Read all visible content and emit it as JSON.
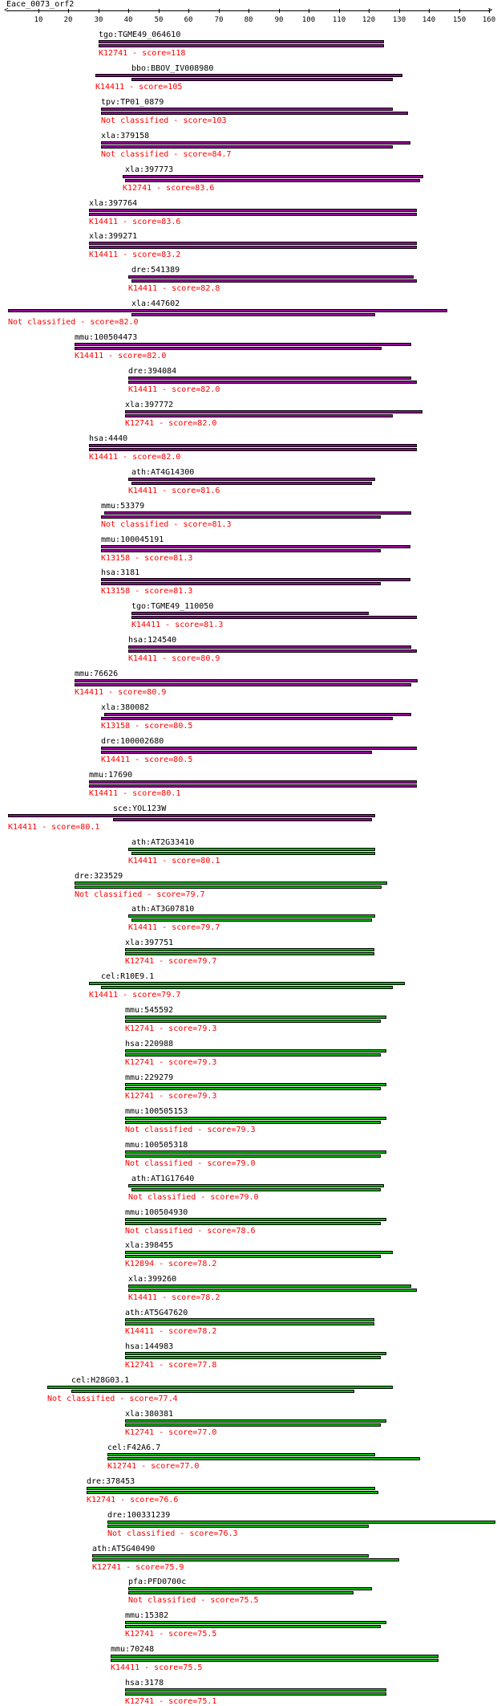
{
  "title": "Eace_0073_orf2",
  "axis": {
    "min": 0,
    "max": 160,
    "ticks": [
      10,
      20,
      30,
      40,
      50,
      60,
      70,
      80,
      90,
      100,
      110,
      120,
      130,
      140,
      150,
      160
    ]
  },
  "colors": {
    "purple": "#990099",
    "green": "#00bb00",
    "label": "#ff0000"
  },
  "hits": [
    {
      "name": "tgo:TGME49_064610",
      "cls": "K12741 - score=118",
      "color": "purple",
      "q": [
        30,
        125
      ],
      "s": [
        30,
        125
      ]
    },
    {
      "name": "bbo:BBOV_IV008980",
      "cls": "K14411 - score=105",
      "color": "purple",
      "q": [
        29,
        131
      ],
      "s": [
        41,
        128
      ]
    },
    {
      "name": "tpv:TP01_0879",
      "cls": "Not classified - score=103",
      "color": "purple",
      "q": [
        31,
        128
      ],
      "s": [
        31,
        133
      ]
    },
    {
      "name": "xla:379158",
      "cls": "Not classified - score=84.7",
      "color": "purple",
      "q": [
        31,
        134
      ],
      "s": [
        31,
        128
      ]
    },
    {
      "name": "xla:397773",
      "cls": "K12741 - score=83.6",
      "color": "purple",
      "q": [
        38,
        138
      ],
      "s": [
        39,
        137
      ]
    },
    {
      "name": "xla:397764",
      "cls": "K14411 - score=83.6",
      "color": "purple",
      "q": [
        27,
        136
      ],
      "s": [
        27,
        136
      ]
    },
    {
      "name": "xla:399271",
      "cls": "K14411 - score=83.2",
      "color": "purple",
      "q": [
        27,
        136
      ],
      "s": [
        27,
        136
      ]
    },
    {
      "name": "dre:541389",
      "cls": "K14411 - score=82.8",
      "color": "purple",
      "q": [
        40,
        135
      ],
      "s": [
        41,
        136
      ]
    },
    {
      "name": "xla:447602",
      "cls": "Not classified - score=82.0",
      "color": "purple",
      "q": [
        0,
        146
      ],
      "s": [
        41,
        122
      ]
    },
    {
      "name": "mmu:100504473",
      "cls": "K14411 - score=82.0",
      "color": "purple",
      "q": [
        22,
        134
      ],
      "s": [
        22,
        124
      ]
    },
    {
      "name": "dre:394084",
      "cls": "K14411 - score=82.0",
      "color": "purple",
      "q": [
        40,
        134
      ],
      "s": [
        40,
        136
      ]
    },
    {
      "name": "xla:397772",
      "cls": "K12741 - score=82.0",
      "color": "purple",
      "q": [
        39,
        138
      ],
      "s": [
        39,
        128
      ]
    },
    {
      "name": "hsa:4440",
      "cls": "K14411 - score=82.0",
      "color": "purple",
      "q": [
        27,
        136
      ],
      "s": [
        27,
        136
      ]
    },
    {
      "name": "ath:AT4G14300",
      "cls": "K14411 - score=81.6",
      "color": "purple",
      "q": [
        40,
        122
      ],
      "s": [
        41,
        121
      ]
    },
    {
      "name": "mmu:53379",
      "cls": "Not classified - score=81.3",
      "color": "purple",
      "q": [
        32,
        134
      ],
      "s": [
        31,
        124
      ]
    },
    {
      "name": "mmu:100045191",
      "cls": "K13158 - score=81.3",
      "color": "purple",
      "q": [
        31,
        134
      ],
      "s": [
        31,
        124
      ]
    },
    {
      "name": "hsa:3181",
      "cls": "K13158 - score=81.3",
      "color": "purple",
      "q": [
        31,
        134
      ],
      "s": [
        31,
        124
      ]
    },
    {
      "name": "tgo:TGME49_110050",
      "cls": "K14411 - score=81.3",
      "color": "purple",
      "q": [
        41,
        120
      ],
      "s": [
        41,
        136
      ]
    },
    {
      "name": "hsa:124540",
      "cls": "K14411 - score=80.9",
      "color": "purple",
      "q": [
        40,
        134
      ],
      "s": [
        40,
        136
      ]
    },
    {
      "name": "mmu:76626",
      "cls": "K14411 - score=80.9",
      "color": "purple",
      "q": [
        22,
        136
      ],
      "s": [
        22,
        134
      ]
    },
    {
      "name": "xla:380082",
      "cls": "K13158 - score=80.5",
      "color": "purple",
      "q": [
        32,
        134
      ],
      "s": [
        31,
        128
      ]
    },
    {
      "name": "dre:100002680",
      "cls": "K14411 - score=80.5",
      "color": "purple",
      "q": [
        31,
        136
      ],
      "s": [
        31,
        121
      ]
    },
    {
      "name": "mmu:17690",
      "cls": "K14411 - score=80.1",
      "color": "purple",
      "q": [
        27,
        136
      ],
      "s": [
        27,
        136
      ]
    },
    {
      "name": "sce:YOL123W",
      "cls": "K14411 - score=80.1",
      "color": "purple",
      "q": [
        0,
        122
      ],
      "s": [
        35,
        121
      ]
    },
    {
      "name": "ath:AT2G33410",
      "cls": "K14411 - score=80.1",
      "color": "green",
      "q": [
        40,
        122
      ],
      "s": [
        41,
        122
      ]
    },
    {
      "name": "dre:323529",
      "cls": "Not classified - score=79.7",
      "color": "green",
      "q": [
        22,
        126
      ],
      "s": [
        22,
        124
      ]
    },
    {
      "name": "ath:AT3G07810",
      "cls": "K14411 - score=79.7",
      "color": "green",
      "q": [
        40,
        122
      ],
      "s": [
        41,
        121
      ]
    },
    {
      "name": "xla:397751",
      "cls": "K12741 - score=79.7",
      "color": "green",
      "q": [
        39,
        122
      ],
      "s": [
        39,
        122
      ]
    },
    {
      "name": "cel:R10E9.1",
      "cls": "K14411 - score=79.7",
      "color": "green",
      "q": [
        27,
        132
      ],
      "s": [
        31,
        128
      ]
    },
    {
      "name": "mmu:545592",
      "cls": "K12741 - score=79.3",
      "color": "green",
      "q": [
        39,
        126
      ],
      "s": [
        39,
        124
      ]
    },
    {
      "name": "hsa:220988",
      "cls": "K12741 - score=79.3",
      "color": "green",
      "q": [
        39,
        126
      ],
      "s": [
        39,
        124
      ]
    },
    {
      "name": "mmu:229279",
      "cls": "K12741 - score=79.3",
      "color": "green",
      "q": [
        39,
        126
      ],
      "s": [
        39,
        124
      ]
    },
    {
      "name": "mmu:100505153",
      "cls": "Not classified - score=79.3",
      "color": "green",
      "q": [
        39,
        126
      ],
      "s": [
        39,
        124
      ]
    },
    {
      "name": "mmu:100505318",
      "cls": "Not classified - score=79.0",
      "color": "green",
      "q": [
        39,
        126
      ],
      "s": [
        39,
        124
      ]
    },
    {
      "name": "ath:AT1G17640",
      "cls": "Not classified - score=79.0",
      "color": "green",
      "q": [
        40,
        125
      ],
      "s": [
        41,
        124
      ]
    },
    {
      "name": "mmu:100504930",
      "cls": "Not classified - score=78.6",
      "color": "green",
      "q": [
        39,
        126
      ],
      "s": [
        39,
        124
      ]
    },
    {
      "name": "xla:398455",
      "cls": "K12894 - score=78.2",
      "color": "green",
      "q": [
        39,
        128
      ],
      "s": [
        39,
        124
      ]
    },
    {
      "name": "xla:399260",
      "cls": "K14411 - score=78.2",
      "color": "green",
      "q": [
        40,
        134
      ],
      "s": [
        40,
        136
      ]
    },
    {
      "name": "ath:AT5G47620",
      "cls": "K14411 - score=78.2",
      "color": "green",
      "q": [
        39,
        122
      ],
      "s": [
        39,
        122
      ]
    },
    {
      "name": "hsa:144983",
      "cls": "K12741 - score=77.8",
      "color": "green",
      "q": [
        39,
        126
      ],
      "s": [
        39,
        124
      ]
    },
    {
      "name": "cel:H28G03.1",
      "cls": "Not classified - score=77.4",
      "color": "green",
      "q": [
        13,
        128
      ],
      "s": [
        21,
        115
      ]
    },
    {
      "name": "xla:380381",
      "cls": "K12741 - score=77.0",
      "color": "green",
      "q": [
        39,
        126
      ],
      "s": [
        39,
        124
      ]
    },
    {
      "name": "cel:F42A6.7",
      "cls": "K12741 - score=77.0",
      "color": "green",
      "q": [
        33,
        122
      ],
      "s": [
        33,
        137
      ]
    },
    {
      "name": "dre:378453",
      "cls": "K12741 - score=76.6",
      "color": "green",
      "q": [
        26,
        122
      ],
      "s": [
        26,
        123
      ]
    },
    {
      "name": "dre:100331239",
      "cls": "Not classified - score=76.3",
      "color": "green",
      "q": [
        33,
        162
      ],
      "s": [
        33,
        120
      ]
    },
    {
      "name": "ath:AT5G40490",
      "cls": "K12741 - score=75.9",
      "color": "green",
      "q": [
        28,
        120
      ],
      "s": [
        28,
        130
      ]
    },
    {
      "name": "pfa:PFD0700c",
      "cls": "Not classified - score=75.5",
      "color": "green",
      "q": [
        40,
        121
      ],
      "s": [
        40,
        115
      ]
    },
    {
      "name": "mmu:15382",
      "cls": "K12741 - score=75.5",
      "color": "green",
      "q": [
        39,
        126
      ],
      "s": [
        39,
        124
      ]
    },
    {
      "name": "mmu:70248",
      "cls": "K14411 - score=75.5",
      "color": "green",
      "q": [
        34,
        143
      ],
      "s": [
        34,
        143
      ]
    },
    {
      "name": "hsa:3178",
      "cls": "K12741 - score=75.1",
      "color": "green",
      "q": [
        39,
        126
      ],
      "s": [
        39,
        126
      ]
    }
  ]
}
